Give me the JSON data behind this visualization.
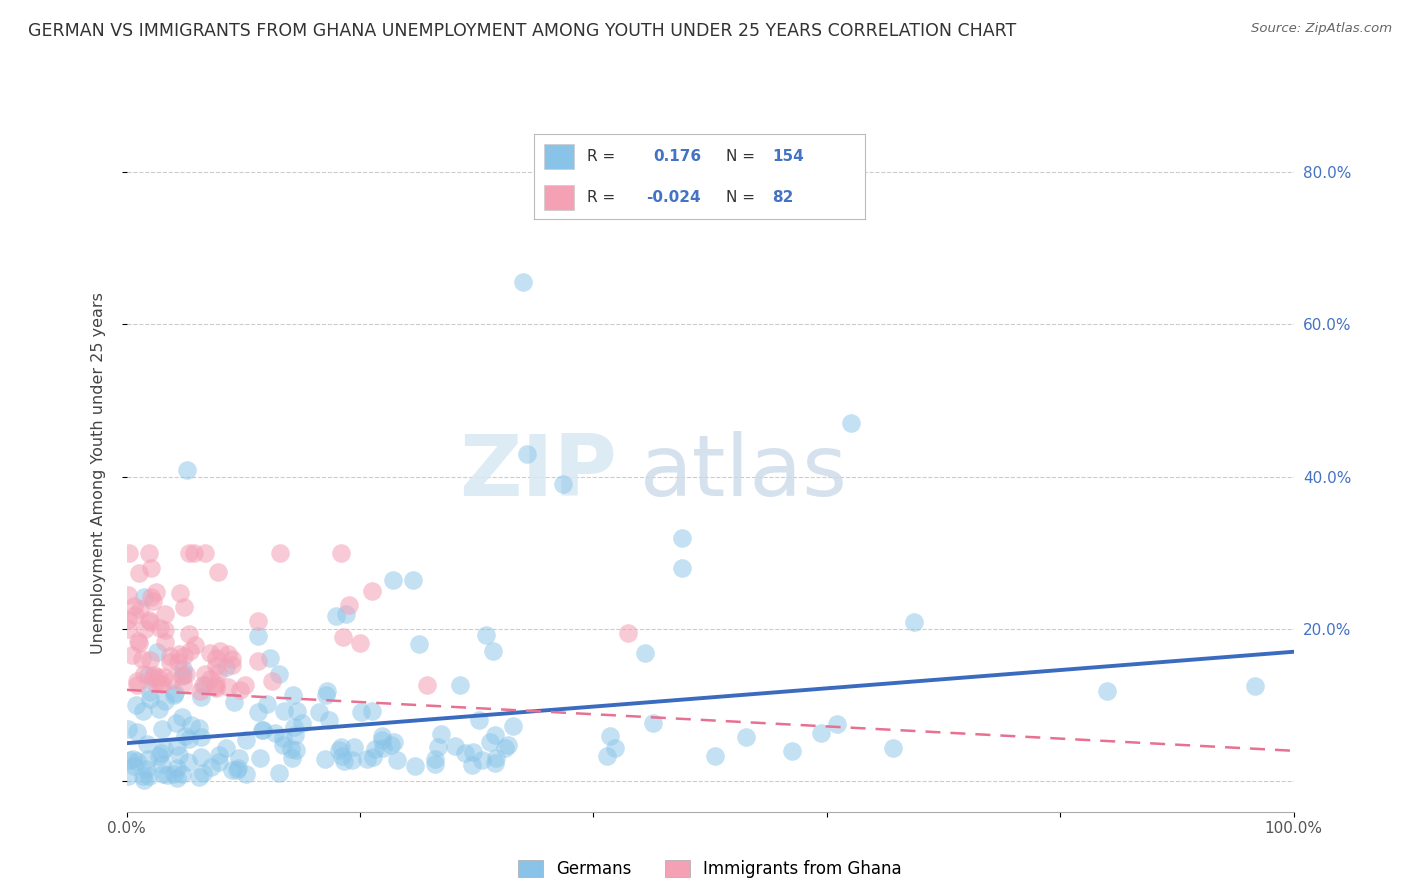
{
  "title": "GERMAN VS IMMIGRANTS FROM GHANA UNEMPLOYMENT AMONG YOUTH UNDER 25 YEARS CORRELATION CHART",
  "source": "Source: ZipAtlas.com",
  "ylabel": "Unemployment Among Youth under 25 years",
  "xlim": [
    0,
    1.0
  ],
  "ylim": [
    -0.04,
    0.85
  ],
  "xticks": [
    0.0,
    0.2,
    0.4,
    0.6,
    0.8,
    1.0
  ],
  "xticklabels": [
    "0.0%",
    "",
    "",
    "",
    "",
    "100.0%"
  ],
  "yticks": [
    0.0,
    0.2,
    0.4,
    0.6,
    0.8
  ],
  "yticklabels_right": [
    "",
    "20.0%",
    "40.0%",
    "60.0%",
    "80.0%"
  ],
  "german_color": "#89C4E8",
  "ghana_color": "#F4A0B5",
  "german_R": 0.176,
  "german_N": 154,
  "ghana_R": -0.024,
  "ghana_N": 82,
  "german_trend_color": "#3B6BBF",
  "ghana_trend_color": "#E87090",
  "watermark_zip": "ZIP",
  "watermark_atlas": "atlas",
  "background_color": "#FFFFFF",
  "grid_color": "#CCCCCC",
  "title_color": "#333333",
  "legend_text_color": "#4472C4",
  "seed": 99
}
